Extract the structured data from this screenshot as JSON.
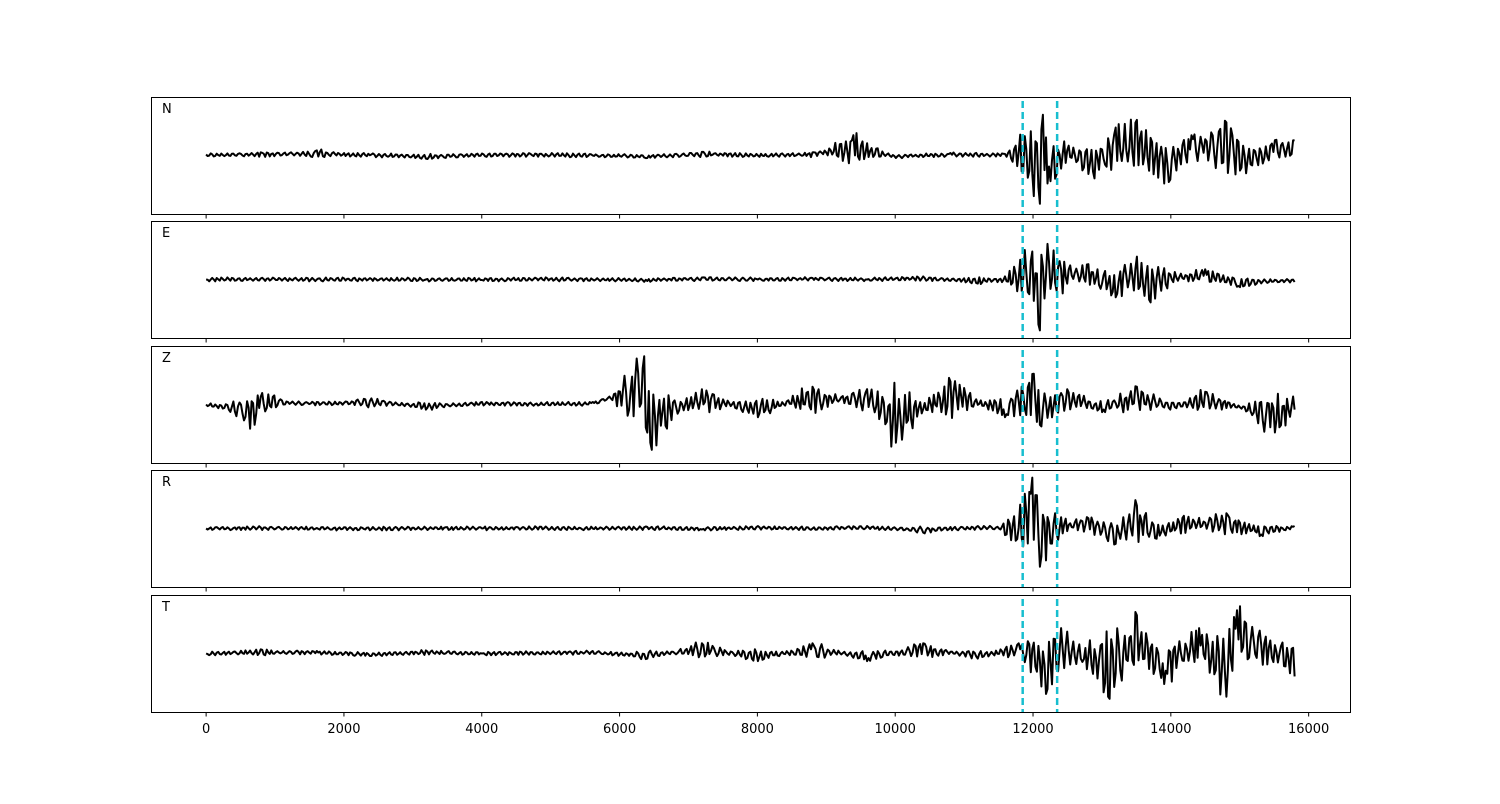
{
  "chart_data": {
    "type": "line",
    "panels": [
      {
        "label": "N",
        "id": "N",
        "color": "#000000",
        "points": [
          [
            0,
            0.02
          ],
          [
            800,
            0.06
          ],
          [
            1600,
            0.1
          ],
          [
            2400,
            0.02
          ],
          [
            3200,
            -0.06
          ],
          [
            4000,
            0.04
          ],
          [
            4800,
            0.03
          ],
          [
            5600,
            0.0
          ],
          [
            6400,
            -0.05
          ],
          [
            7200,
            0.07
          ],
          [
            8000,
            0.0
          ],
          [
            8800,
            0.06
          ],
          [
            9400,
            0.4
          ],
          [
            10000,
            -0.05
          ],
          [
            10800,
            0.05
          ],
          [
            11600,
            0.03
          ],
          [
            11900,
            0.12
          ],
          [
            12100,
            -0.95
          ],
          [
            12150,
            0.8
          ],
          [
            12200,
            -0.55
          ],
          [
            12500,
            0.1
          ],
          [
            12900,
            -0.45
          ],
          [
            13200,
            0.55
          ],
          [
            13500,
            0.7
          ],
          [
            13900,
            -0.55
          ],
          [
            14300,
            0.4
          ],
          [
            14800,
            0.65
          ],
          [
            15100,
            -0.35
          ],
          [
            15500,
            0.3
          ],
          [
            15800,
            0.3
          ]
        ]
      },
      {
        "label": "E",
        "id": "E",
        "color": "#000000",
        "points": [
          [
            0,
            0.0
          ],
          [
            800,
            0.02
          ],
          [
            1600,
            0.0
          ],
          [
            2400,
            0.01
          ],
          [
            3200,
            0.0
          ],
          [
            4000,
            -0.01
          ],
          [
            4800,
            0.02
          ],
          [
            5600,
            0.0
          ],
          [
            6400,
            -0.03
          ],
          [
            7200,
            0.04
          ],
          [
            8000,
            0.0
          ],
          [
            8800,
            0.03
          ],
          [
            9600,
            0.0
          ],
          [
            10400,
            0.06
          ],
          [
            11200,
            -0.08
          ],
          [
            11800,
            0.02
          ],
          [
            12000,
            0.55
          ],
          [
            12100,
            -1.0
          ],
          [
            12200,
            0.7
          ],
          [
            12400,
            0.2
          ],
          [
            12800,
            0.3
          ],
          [
            13200,
            -0.35
          ],
          [
            13500,
            0.45
          ],
          [
            13700,
            -0.45
          ],
          [
            14000,
            0.1
          ],
          [
            14500,
            0.2
          ],
          [
            15000,
            -0.15
          ],
          [
            15800,
            -0.05
          ]
        ]
      },
      {
        "label": "Z",
        "id": "Z",
        "color": "#000000",
        "points": [
          [
            0,
            0.0
          ],
          [
            700,
            -0.4
          ],
          [
            800,
            0.15
          ],
          [
            1600,
            0.05
          ],
          [
            2400,
            0.12
          ],
          [
            3200,
            -0.1
          ],
          [
            4000,
            0.05
          ],
          [
            4800,
            0.02
          ],
          [
            5600,
            0.05
          ],
          [
            6350,
            0.95
          ],
          [
            6450,
            -0.75
          ],
          [
            7200,
            0.3
          ],
          [
            8000,
            -0.25
          ],
          [
            8800,
            0.35
          ],
          [
            9600,
            0.3
          ],
          [
            10000,
            -0.75
          ],
          [
            10800,
            0.45
          ],
          [
            11600,
            -0.25
          ],
          [
            12000,
            0.6
          ],
          [
            12100,
            -0.4
          ],
          [
            12500,
            0.3
          ],
          [
            13000,
            -0.15
          ],
          [
            13500,
            0.35
          ],
          [
            14000,
            -0.1
          ],
          [
            14500,
            0.25
          ],
          [
            15500,
            -0.55
          ],
          [
            15800,
            -0.1
          ]
        ]
      },
      {
        "label": "R",
        "id": "R",
        "color": "#000000",
        "points": [
          [
            0,
            0.0
          ],
          [
            800,
            0.02
          ],
          [
            1600,
            0.01
          ],
          [
            2400,
            -0.01
          ],
          [
            3200,
            0.01
          ],
          [
            4000,
            0.0
          ],
          [
            4800,
            0.02
          ],
          [
            5600,
            0.0
          ],
          [
            6400,
            0.03
          ],
          [
            7200,
            -0.02
          ],
          [
            8000,
            0.05
          ],
          [
            8800,
            0.0
          ],
          [
            9600,
            0.05
          ],
          [
            10400,
            -0.08
          ],
          [
            11200,
            0.05
          ],
          [
            11800,
            0.02
          ],
          [
            12000,
            1.0
          ],
          [
            12100,
            -0.75
          ],
          [
            12300,
            0.1
          ],
          [
            12800,
            0.2
          ],
          [
            13200,
            -0.3
          ],
          [
            13500,
            0.45
          ],
          [
            13800,
            -0.2
          ],
          [
            14200,
            0.25
          ],
          [
            14800,
            0.3
          ],
          [
            15300,
            -0.15
          ],
          [
            15800,
            0.05
          ]
        ]
      },
      {
        "label": "T",
        "id": "T",
        "color": "#000000",
        "points": [
          [
            0,
            0.0
          ],
          [
            800,
            0.08
          ],
          [
            1600,
            0.05
          ],
          [
            2400,
            -0.05
          ],
          [
            3200,
            0.06
          ],
          [
            4000,
            0.0
          ],
          [
            4800,
            0.02
          ],
          [
            5600,
            0.05
          ],
          [
            6400,
            -0.1
          ],
          [
            7200,
            0.2
          ],
          [
            8000,
            -0.15
          ],
          [
            8800,
            0.2
          ],
          [
            9600,
            -0.15
          ],
          [
            10400,
            0.2
          ],
          [
            11200,
            -0.1
          ],
          [
            11800,
            0.2
          ],
          [
            12200,
            -0.7
          ],
          [
            12400,
            0.5
          ],
          [
            13100,
            -0.85
          ],
          [
            13500,
            0.75
          ],
          [
            13900,
            -0.6
          ],
          [
            14400,
            0.5
          ],
          [
            14800,
            -0.85
          ],
          [
            14950,
            0.85
          ],
          [
            15300,
            0.45
          ],
          [
            15800,
            -0.45
          ]
        ]
      }
    ],
    "vlines": [
      {
        "x": 11850,
        "color": "#17becf",
        "style": "dashed"
      },
      {
        "x": 12350,
        "color": "#17becf",
        "style": "dashed"
      }
    ],
    "xlim": [
      -800,
      16600
    ],
    "ylim": [
      -1.15,
      1.15
    ],
    "xticks": [
      0,
      2000,
      4000,
      6000,
      8000,
      10000,
      12000,
      14000,
      16000
    ],
    "xtick_labels": [
      "0",
      "2000",
      "4000",
      "6000",
      "8000",
      "10000",
      "12000",
      "14000",
      "16000"
    ],
    "grid": false,
    "title": "",
    "xlabel": "",
    "ylabel": ""
  }
}
